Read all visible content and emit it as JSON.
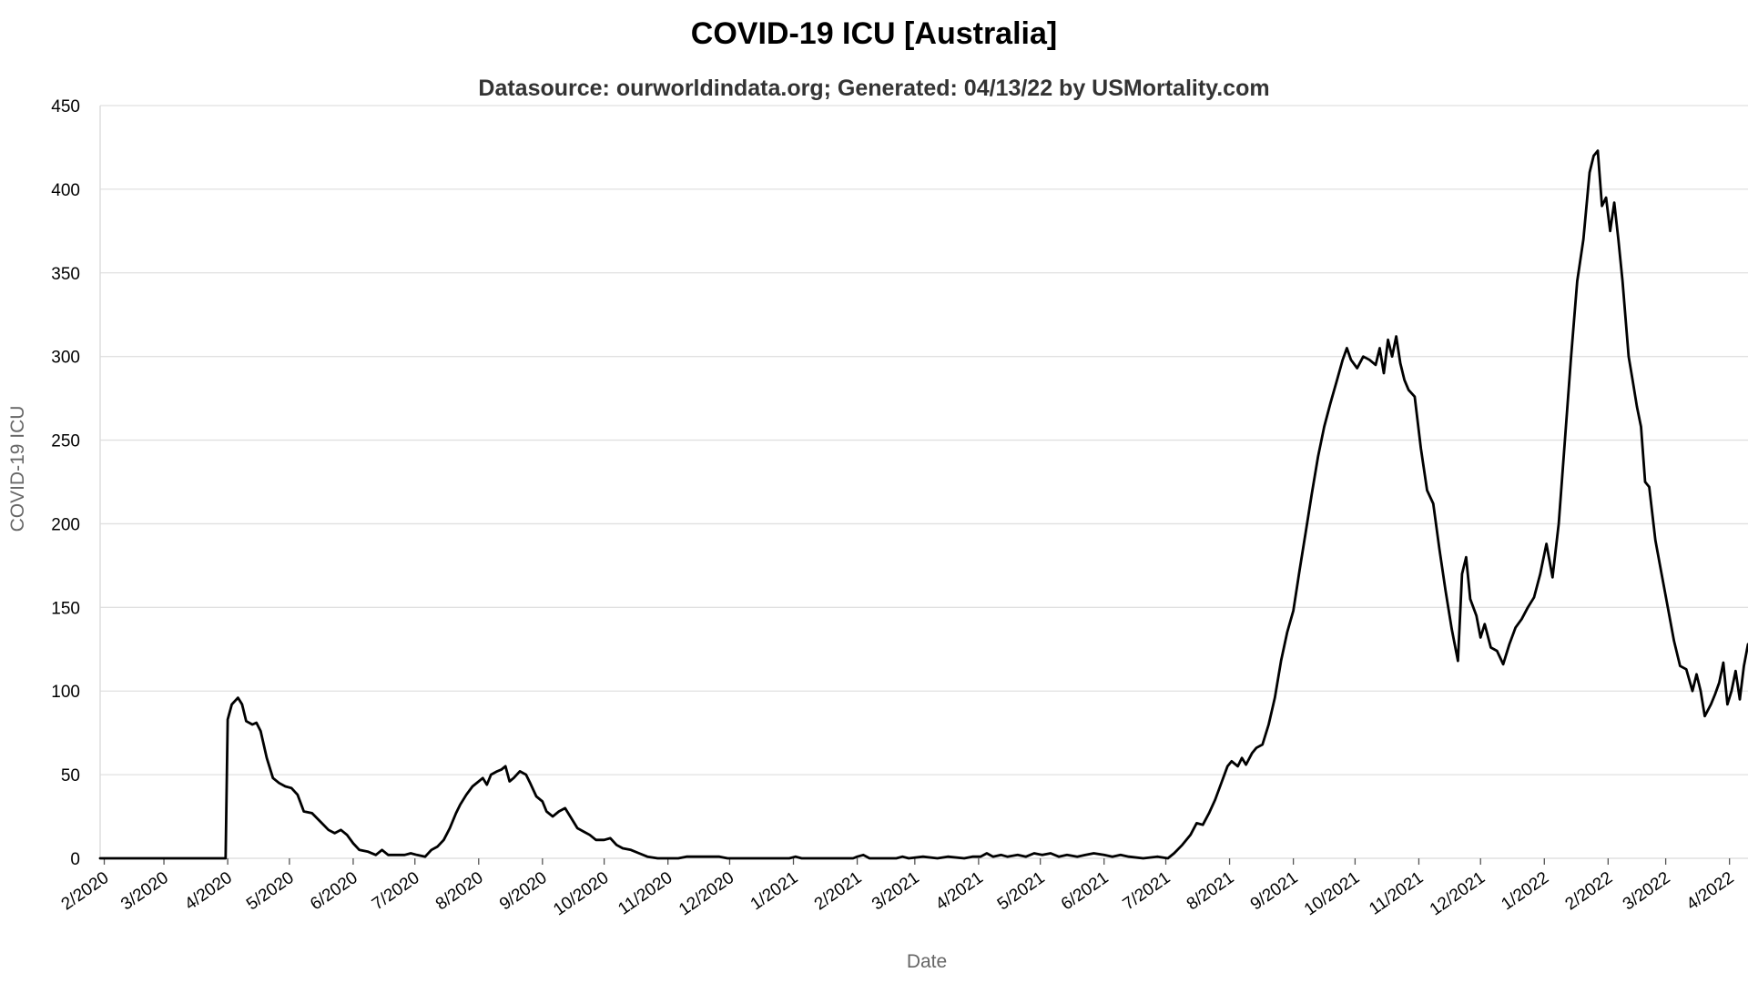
{
  "chart_data": {
    "type": "line",
    "title": "COVID-19 ICU [Australia]",
    "subtitle": "Datasource: ourworldindata.org; Generated: 04/13/22 by USMortality.com",
    "xlabel": "Date",
    "ylabel": "COVID-19 ICU",
    "ylim": [
      0,
      450
    ],
    "y_ticks": [
      0,
      50,
      100,
      150,
      200,
      250,
      300,
      350,
      400,
      450
    ],
    "x_ticks": [
      {
        "date": "2020-02-01",
        "label": "2/2020"
      },
      {
        "date": "2020-03-01",
        "label": "3/2020"
      },
      {
        "date": "2020-04-01",
        "label": "4/2020"
      },
      {
        "date": "2020-05-01",
        "label": "5/2020"
      },
      {
        "date": "2020-06-01",
        "label": "6/2020"
      },
      {
        "date": "2020-07-01",
        "label": "7/2020"
      },
      {
        "date": "2020-08-01",
        "label": "8/2020"
      },
      {
        "date": "2020-09-01",
        "label": "9/2020"
      },
      {
        "date": "2020-10-01",
        "label": "10/2020"
      },
      {
        "date": "2020-11-01",
        "label": "11/2020"
      },
      {
        "date": "2020-12-01",
        "label": "12/2020"
      },
      {
        "date": "2021-01-01",
        "label": "1/2021"
      },
      {
        "date": "2021-02-01",
        "label": "2/2021"
      },
      {
        "date": "2021-03-01",
        "label": "3/2021"
      },
      {
        "date": "2021-04-01",
        "label": "4/2021"
      },
      {
        "date": "2021-05-01",
        "label": "5/2021"
      },
      {
        "date": "2021-06-01",
        "label": "6/2021"
      },
      {
        "date": "2021-07-01",
        "label": "7/2021"
      },
      {
        "date": "2021-08-01",
        "label": "8/2021"
      },
      {
        "date": "2021-09-01",
        "label": "9/2021"
      },
      {
        "date": "2021-10-01",
        "label": "10/2021"
      },
      {
        "date": "2021-11-01",
        "label": "11/2021"
      },
      {
        "date": "2021-12-01",
        "label": "12/2021"
      },
      {
        "date": "2022-01-01",
        "label": "1/2022"
      },
      {
        "date": "2022-02-01",
        "label": "2/2022"
      },
      {
        "date": "2022-03-01",
        "label": "3/2022"
      },
      {
        "date": "2022-04-01",
        "label": "4/2022"
      }
    ],
    "x_range": [
      "2020-01-30",
      "2022-04-10"
    ],
    "grid": true,
    "legend": "none",
    "series": [
      {
        "color": "#000000",
        "points": [
          [
            "2020-01-30",
            0
          ],
          [
            "2020-03-31",
            0
          ],
          [
            "2020-04-01",
            83
          ],
          [
            "2020-04-03",
            92
          ],
          [
            "2020-04-06",
            96
          ],
          [
            "2020-04-08",
            92
          ],
          [
            "2020-04-10",
            82
          ],
          [
            "2020-04-13",
            80
          ],
          [
            "2020-04-15",
            81
          ],
          [
            "2020-04-17",
            76
          ],
          [
            "2020-04-20",
            60
          ],
          [
            "2020-04-23",
            48
          ],
          [
            "2020-04-26",
            45
          ],
          [
            "2020-04-29",
            43
          ],
          [
            "2020-05-02",
            42
          ],
          [
            "2020-05-05",
            38
          ],
          [
            "2020-05-08",
            28
          ],
          [
            "2020-05-12",
            27
          ],
          [
            "2020-05-16",
            22
          ],
          [
            "2020-05-20",
            17
          ],
          [
            "2020-05-23",
            15
          ],
          [
            "2020-05-26",
            17
          ],
          [
            "2020-05-29",
            14
          ],
          [
            "2020-06-01",
            9
          ],
          [
            "2020-06-04",
            5
          ],
          [
            "2020-06-08",
            4
          ],
          [
            "2020-06-12",
            2
          ],
          [
            "2020-06-15",
            5
          ],
          [
            "2020-06-18",
            2
          ],
          [
            "2020-06-22",
            2
          ],
          [
            "2020-06-26",
            2
          ],
          [
            "2020-06-29",
            3
          ],
          [
            "2020-07-02",
            2
          ],
          [
            "2020-07-06",
            1
          ],
          [
            "2020-07-09",
            5
          ],
          [
            "2020-07-12",
            7
          ],
          [
            "2020-07-15",
            11
          ],
          [
            "2020-07-18",
            18
          ],
          [
            "2020-07-21",
            27
          ],
          [
            "2020-07-23",
            32
          ],
          [
            "2020-07-26",
            38
          ],
          [
            "2020-07-29",
            43
          ],
          [
            "2020-08-01",
            46
          ],
          [
            "2020-08-03",
            48
          ],
          [
            "2020-08-05",
            44
          ],
          [
            "2020-08-07",
            50
          ],
          [
            "2020-08-10",
            52
          ],
          [
            "2020-08-12",
            53
          ],
          [
            "2020-08-14",
            55
          ],
          [
            "2020-08-16",
            46
          ],
          [
            "2020-08-18",
            48
          ],
          [
            "2020-08-21",
            52
          ],
          [
            "2020-08-24",
            50
          ],
          [
            "2020-08-26",
            45
          ],
          [
            "2020-08-29",
            37
          ],
          [
            "2020-09-01",
            34
          ],
          [
            "2020-09-03",
            28
          ],
          [
            "2020-09-06",
            25
          ],
          [
            "2020-09-09",
            28
          ],
          [
            "2020-09-12",
            30
          ],
          [
            "2020-09-15",
            24
          ],
          [
            "2020-09-18",
            18
          ],
          [
            "2020-09-21",
            16
          ],
          [
            "2020-09-24",
            14
          ],
          [
            "2020-09-27",
            11
          ],
          [
            "2020-10-01",
            11
          ],
          [
            "2020-10-04",
            12
          ],
          [
            "2020-10-07",
            8
          ],
          [
            "2020-10-10",
            6
          ],
          [
            "2020-10-14",
            5
          ],
          [
            "2020-10-18",
            3
          ],
          [
            "2020-10-22",
            1
          ],
          [
            "2020-10-27",
            0
          ],
          [
            "2020-11-06",
            0
          ],
          [
            "2020-11-10",
            1
          ],
          [
            "2020-11-26",
            1
          ],
          [
            "2020-11-30",
            0
          ],
          [
            "2020-12-30",
            0
          ],
          [
            "2021-01-02",
            1
          ],
          [
            "2021-01-05",
            0
          ],
          [
            "2021-01-30",
            0
          ],
          [
            "2021-02-01",
            1
          ],
          [
            "2021-02-04",
            2
          ],
          [
            "2021-02-07",
            0
          ],
          [
            "2021-02-20",
            0
          ],
          [
            "2021-02-23",
            1
          ],
          [
            "2021-02-26",
            0
          ],
          [
            "2021-03-05",
            1
          ],
          [
            "2021-03-12",
            0
          ],
          [
            "2021-03-17",
            1
          ],
          [
            "2021-03-25",
            0
          ],
          [
            "2021-03-29",
            1
          ],
          [
            "2021-04-02",
            1
          ],
          [
            "2021-04-05",
            3
          ],
          [
            "2021-04-08",
            1
          ],
          [
            "2021-04-12",
            2
          ],
          [
            "2021-04-15",
            1
          ],
          [
            "2021-04-20",
            2
          ],
          [
            "2021-04-24",
            1
          ],
          [
            "2021-04-28",
            3
          ],
          [
            "2021-05-02",
            2
          ],
          [
            "2021-05-06",
            3
          ],
          [
            "2021-05-10",
            1
          ],
          [
            "2021-05-14",
            2
          ],
          [
            "2021-05-19",
            1
          ],
          [
            "2021-05-23",
            2
          ],
          [
            "2021-05-27",
            3
          ],
          [
            "2021-06-01",
            2
          ],
          [
            "2021-06-05",
            1
          ],
          [
            "2021-06-09",
            2
          ],
          [
            "2021-06-13",
            1
          ],
          [
            "2021-06-20",
            0
          ],
          [
            "2021-06-27",
            1
          ],
          [
            "2021-07-02",
            0
          ],
          [
            "2021-07-05",
            3
          ],
          [
            "2021-07-09",
            8
          ],
          [
            "2021-07-13",
            14
          ],
          [
            "2021-07-16",
            21
          ],
          [
            "2021-07-19",
            20
          ],
          [
            "2021-07-22",
            27
          ],
          [
            "2021-07-25",
            35
          ],
          [
            "2021-07-28",
            45
          ],
          [
            "2021-07-31",
            55
          ],
          [
            "2021-08-02",
            58
          ],
          [
            "2021-08-05",
            55
          ],
          [
            "2021-08-07",
            60
          ],
          [
            "2021-08-09",
            56
          ],
          [
            "2021-08-12",
            63
          ],
          [
            "2021-08-14",
            66
          ],
          [
            "2021-08-17",
            68
          ],
          [
            "2021-08-20",
            80
          ],
          [
            "2021-08-23",
            96
          ],
          [
            "2021-08-26",
            118
          ],
          [
            "2021-08-29",
            135
          ],
          [
            "2021-09-01",
            148
          ],
          [
            "2021-09-04",
            172
          ],
          [
            "2021-09-07",
            195
          ],
          [
            "2021-09-10",
            218
          ],
          [
            "2021-09-13",
            240
          ],
          [
            "2021-09-16",
            258
          ],
          [
            "2021-09-19",
            272
          ],
          [
            "2021-09-22",
            285
          ],
          [
            "2021-09-25",
            298
          ],
          [
            "2021-09-27",
            305
          ],
          [
            "2021-09-29",
            298
          ],
          [
            "2021-10-02",
            293
          ],
          [
            "2021-10-05",
            300
          ],
          [
            "2021-10-08",
            298
          ],
          [
            "2021-10-11",
            295
          ],
          [
            "2021-10-13",
            305
          ],
          [
            "2021-10-15",
            290
          ],
          [
            "2021-10-17",
            310
          ],
          [
            "2021-10-19",
            300
          ],
          [
            "2021-10-21",
            312
          ],
          [
            "2021-10-23",
            296
          ],
          [
            "2021-10-25",
            286
          ],
          [
            "2021-10-27",
            280
          ],
          [
            "2021-10-30",
            276
          ],
          [
            "2021-11-02",
            245
          ],
          [
            "2021-11-05",
            220
          ],
          [
            "2021-11-08",
            212
          ],
          [
            "2021-11-11",
            185
          ],
          [
            "2021-11-14",
            160
          ],
          [
            "2021-11-17",
            137
          ],
          [
            "2021-11-20",
            118
          ],
          [
            "2021-11-22",
            170
          ],
          [
            "2021-11-24",
            180
          ],
          [
            "2021-11-26",
            155
          ],
          [
            "2021-11-29",
            145
          ],
          [
            "2021-12-01",
            132
          ],
          [
            "2021-12-03",
            140
          ],
          [
            "2021-12-06",
            126
          ],
          [
            "2021-12-09",
            124
          ],
          [
            "2021-12-12",
            116
          ],
          [
            "2021-12-15",
            128
          ],
          [
            "2021-12-18",
            138
          ],
          [
            "2021-12-21",
            143
          ],
          [
            "2021-12-24",
            150
          ],
          [
            "2021-12-27",
            156
          ],
          [
            "2021-12-30",
            170
          ],
          [
            "2022-01-02",
            188
          ],
          [
            "2022-01-05",
            168
          ],
          [
            "2022-01-08",
            200
          ],
          [
            "2022-01-11",
            250
          ],
          [
            "2022-01-14",
            300
          ],
          [
            "2022-01-17",
            345
          ],
          [
            "2022-01-20",
            370
          ],
          [
            "2022-01-23",
            410
          ],
          [
            "2022-01-25",
            420
          ],
          [
            "2022-01-27",
            423
          ],
          [
            "2022-01-29",
            390
          ],
          [
            "2022-01-31",
            395
          ],
          [
            "2022-02-02",
            375
          ],
          [
            "2022-02-04",
            392
          ],
          [
            "2022-02-06",
            370
          ],
          [
            "2022-02-08",
            345
          ],
          [
            "2022-02-11",
            300
          ],
          [
            "2022-02-13",
            285
          ],
          [
            "2022-02-15",
            270
          ],
          [
            "2022-02-17",
            258
          ],
          [
            "2022-02-19",
            225
          ],
          [
            "2022-02-21",
            222
          ],
          [
            "2022-02-24",
            190
          ],
          [
            "2022-02-27",
            170
          ],
          [
            "2022-03-02",
            150
          ],
          [
            "2022-03-05",
            130
          ],
          [
            "2022-03-08",
            115
          ],
          [
            "2022-03-11",
            113
          ],
          [
            "2022-03-14",
            100
          ],
          [
            "2022-03-16",
            110
          ],
          [
            "2022-03-18",
            100
          ],
          [
            "2022-03-20",
            85
          ],
          [
            "2022-03-23",
            92
          ],
          [
            "2022-03-25",
            98
          ],
          [
            "2022-03-27",
            105
          ],
          [
            "2022-03-29",
            117
          ],
          [
            "2022-03-31",
            92
          ],
          [
            "2022-04-02",
            100
          ],
          [
            "2022-04-04",
            112
          ],
          [
            "2022-04-06",
            95
          ],
          [
            "2022-04-08",
            115
          ],
          [
            "2022-04-10",
            128
          ]
        ]
      }
    ]
  }
}
